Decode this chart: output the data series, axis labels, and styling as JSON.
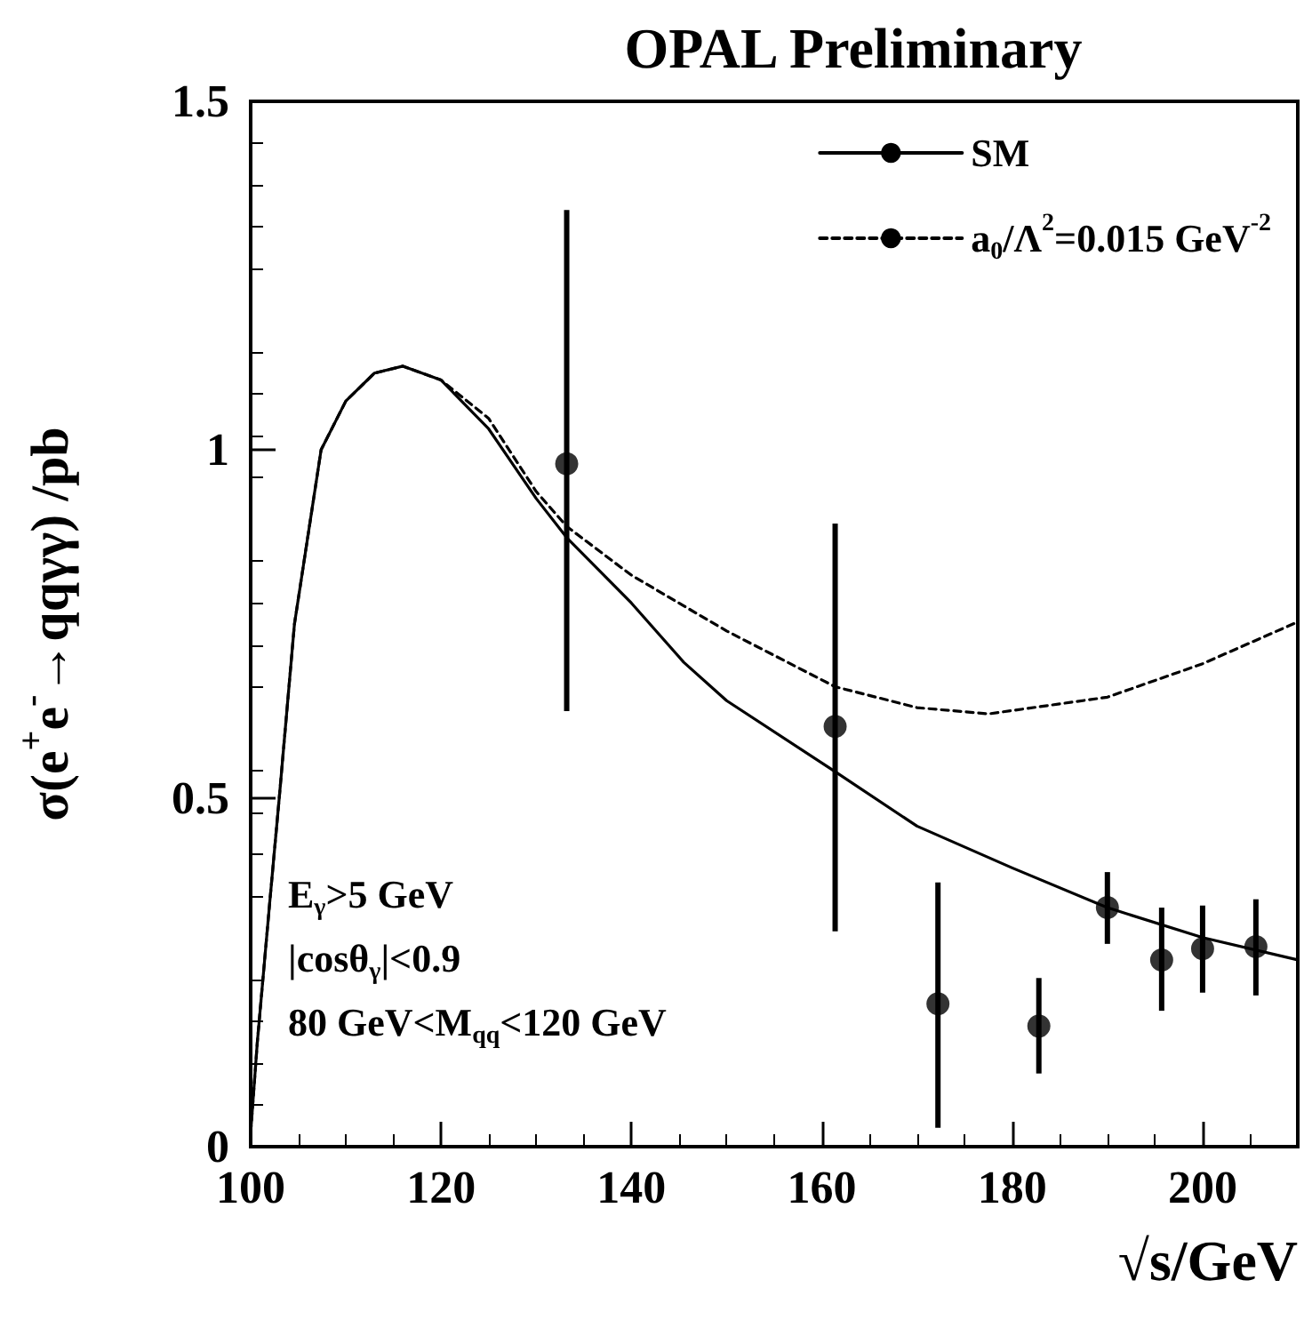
{
  "chart_data": {
    "type": "line",
    "title": "OPAL Preliminary",
    "xlabel": "√s/GeV",
    "ylabel": "σ(e$^{+}$e$^{-}$→qqγγ) /pb",
    "annotations": [
      "E$_{γ}$>5 GeV",
      "|cosθ$_{γ}$|<0.9",
      "80 GeV<M$_{qq}$<120 GeV"
    ],
    "xlim": [
      100,
      210
    ],
    "ylim": [
      0,
      1.5
    ],
    "xticks": [
      100,
      120,
      140,
      160,
      180,
      200
    ],
    "yticks": [
      0,
      0.5,
      1,
      1.5
    ],
    "legend": "top right",
    "series": [
      {
        "name": "SM",
        "color": "#000000",
        "line_style": "solid",
        "marker": "none",
        "x": [
          100,
          100.7,
          102,
          103,
          104.6,
          107.4,
          110,
          113,
          116,
          120,
          125,
          130,
          133.2,
          140,
          145.5,
          150,
          161.4,
          170,
          180,
          190,
          200,
          210
        ],
        "values": [
          0.02,
          0.15,
          0.35,
          0.5,
          0.75,
          1.0,
          1.07,
          1.11,
          1.12,
          1.1,
          1.03,
          0.93,
          0.874,
          0.78,
          0.695,
          0.64,
          0.538,
          0.46,
          0.4,
          0.343,
          0.3,
          0.268
        ]
      },
      {
        "name": "a$_{0}$/Λ$^{2}$=0.015 GeV$^{-2}$",
        "color": "#000000",
        "line_style": "dashed",
        "marker": "none",
        "x": [
          100,
          100.7,
          102,
          103,
          104.6,
          107.4,
          110,
          113,
          116,
          120,
          125,
          130,
          133.2,
          140,
          145.5,
          150,
          161.4,
          170,
          177.5,
          190,
          200,
          210
        ],
        "values": [
          0.02,
          0.15,
          0.35,
          0.5,
          0.75,
          1.0,
          1.07,
          1.11,
          1.12,
          1.1,
          1.045,
          0.94,
          0.89,
          0.82,
          0.776,
          0.74,
          0.66,
          0.63,
          0.621,
          0.645,
          0.693,
          0.753
        ]
      },
      {
        "type": "scatter",
        "color": "#000000",
        "marker": "circle",
        "x": [
          133.2,
          161.4,
          172.2,
          182.8,
          190,
          195.7,
          200,
          205.6
        ],
        "values": [
          0.98,
          0.603,
          0.205,
          0.173,
          0.343,
          0.268,
          0.284,
          0.287
        ],
        "errors": [
          [
            0.625,
            1.344
          ],
          [
            0.309,
            0.894
          ],
          [
            0.027,
            0.379
          ],
          [
            0.105,
            0.242
          ],
          [
            0.291,
            0.394
          ],
          [
            0.195,
            0.343
          ],
          [
            0.221,
            0.346
          ],
          [
            0.217,
            0.355
          ]
        ]
      }
    ]
  }
}
